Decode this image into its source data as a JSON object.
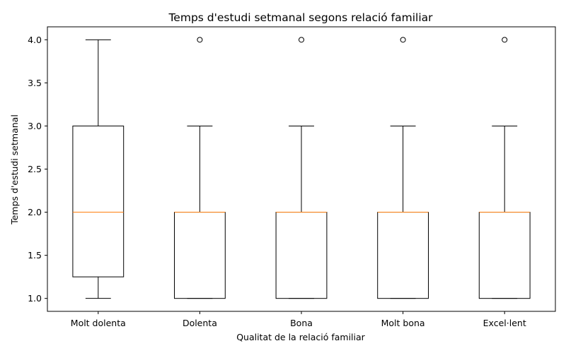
{
  "chart_data": {
    "type": "boxplot",
    "title": "Temps d'estudi setmanal segons relació familiar",
    "xlabel": "Qualitat de la relació familiar",
    "ylabel": "Temps d'estudi setmanal",
    "ylim": [
      0.85,
      4.15
    ],
    "yticks": [
      "1.0",
      "1.5",
      "2.0",
      "2.5",
      "3.0",
      "3.5",
      "4.0"
    ],
    "grid": false,
    "colors": {
      "box": "#000000",
      "median": "#ff7f0e",
      "flier": "#000000"
    },
    "categories": [
      "Molt dolenta",
      "Dolenta",
      "Bona",
      "Molt bona",
      "Excel·lent"
    ],
    "boxes": [
      {
        "whislo": 1.0,
        "q1": 1.25,
        "med": 2.0,
        "q3": 3.0,
        "whishi": 4.0,
        "fliers": []
      },
      {
        "whislo": 1.0,
        "q1": 1.0,
        "med": 2.0,
        "q3": 2.0,
        "whishi": 3.0,
        "fliers": [
          4.0
        ]
      },
      {
        "whislo": 1.0,
        "q1": 1.0,
        "med": 2.0,
        "q3": 2.0,
        "whishi": 3.0,
        "fliers": [
          4.0
        ]
      },
      {
        "whislo": 1.0,
        "q1": 1.0,
        "med": 2.0,
        "q3": 2.0,
        "whishi": 3.0,
        "fliers": [
          4.0
        ]
      },
      {
        "whislo": 1.0,
        "q1": 1.0,
        "med": 2.0,
        "q3": 2.0,
        "whishi": 3.0,
        "fliers": [
          4.0
        ]
      }
    ]
  }
}
